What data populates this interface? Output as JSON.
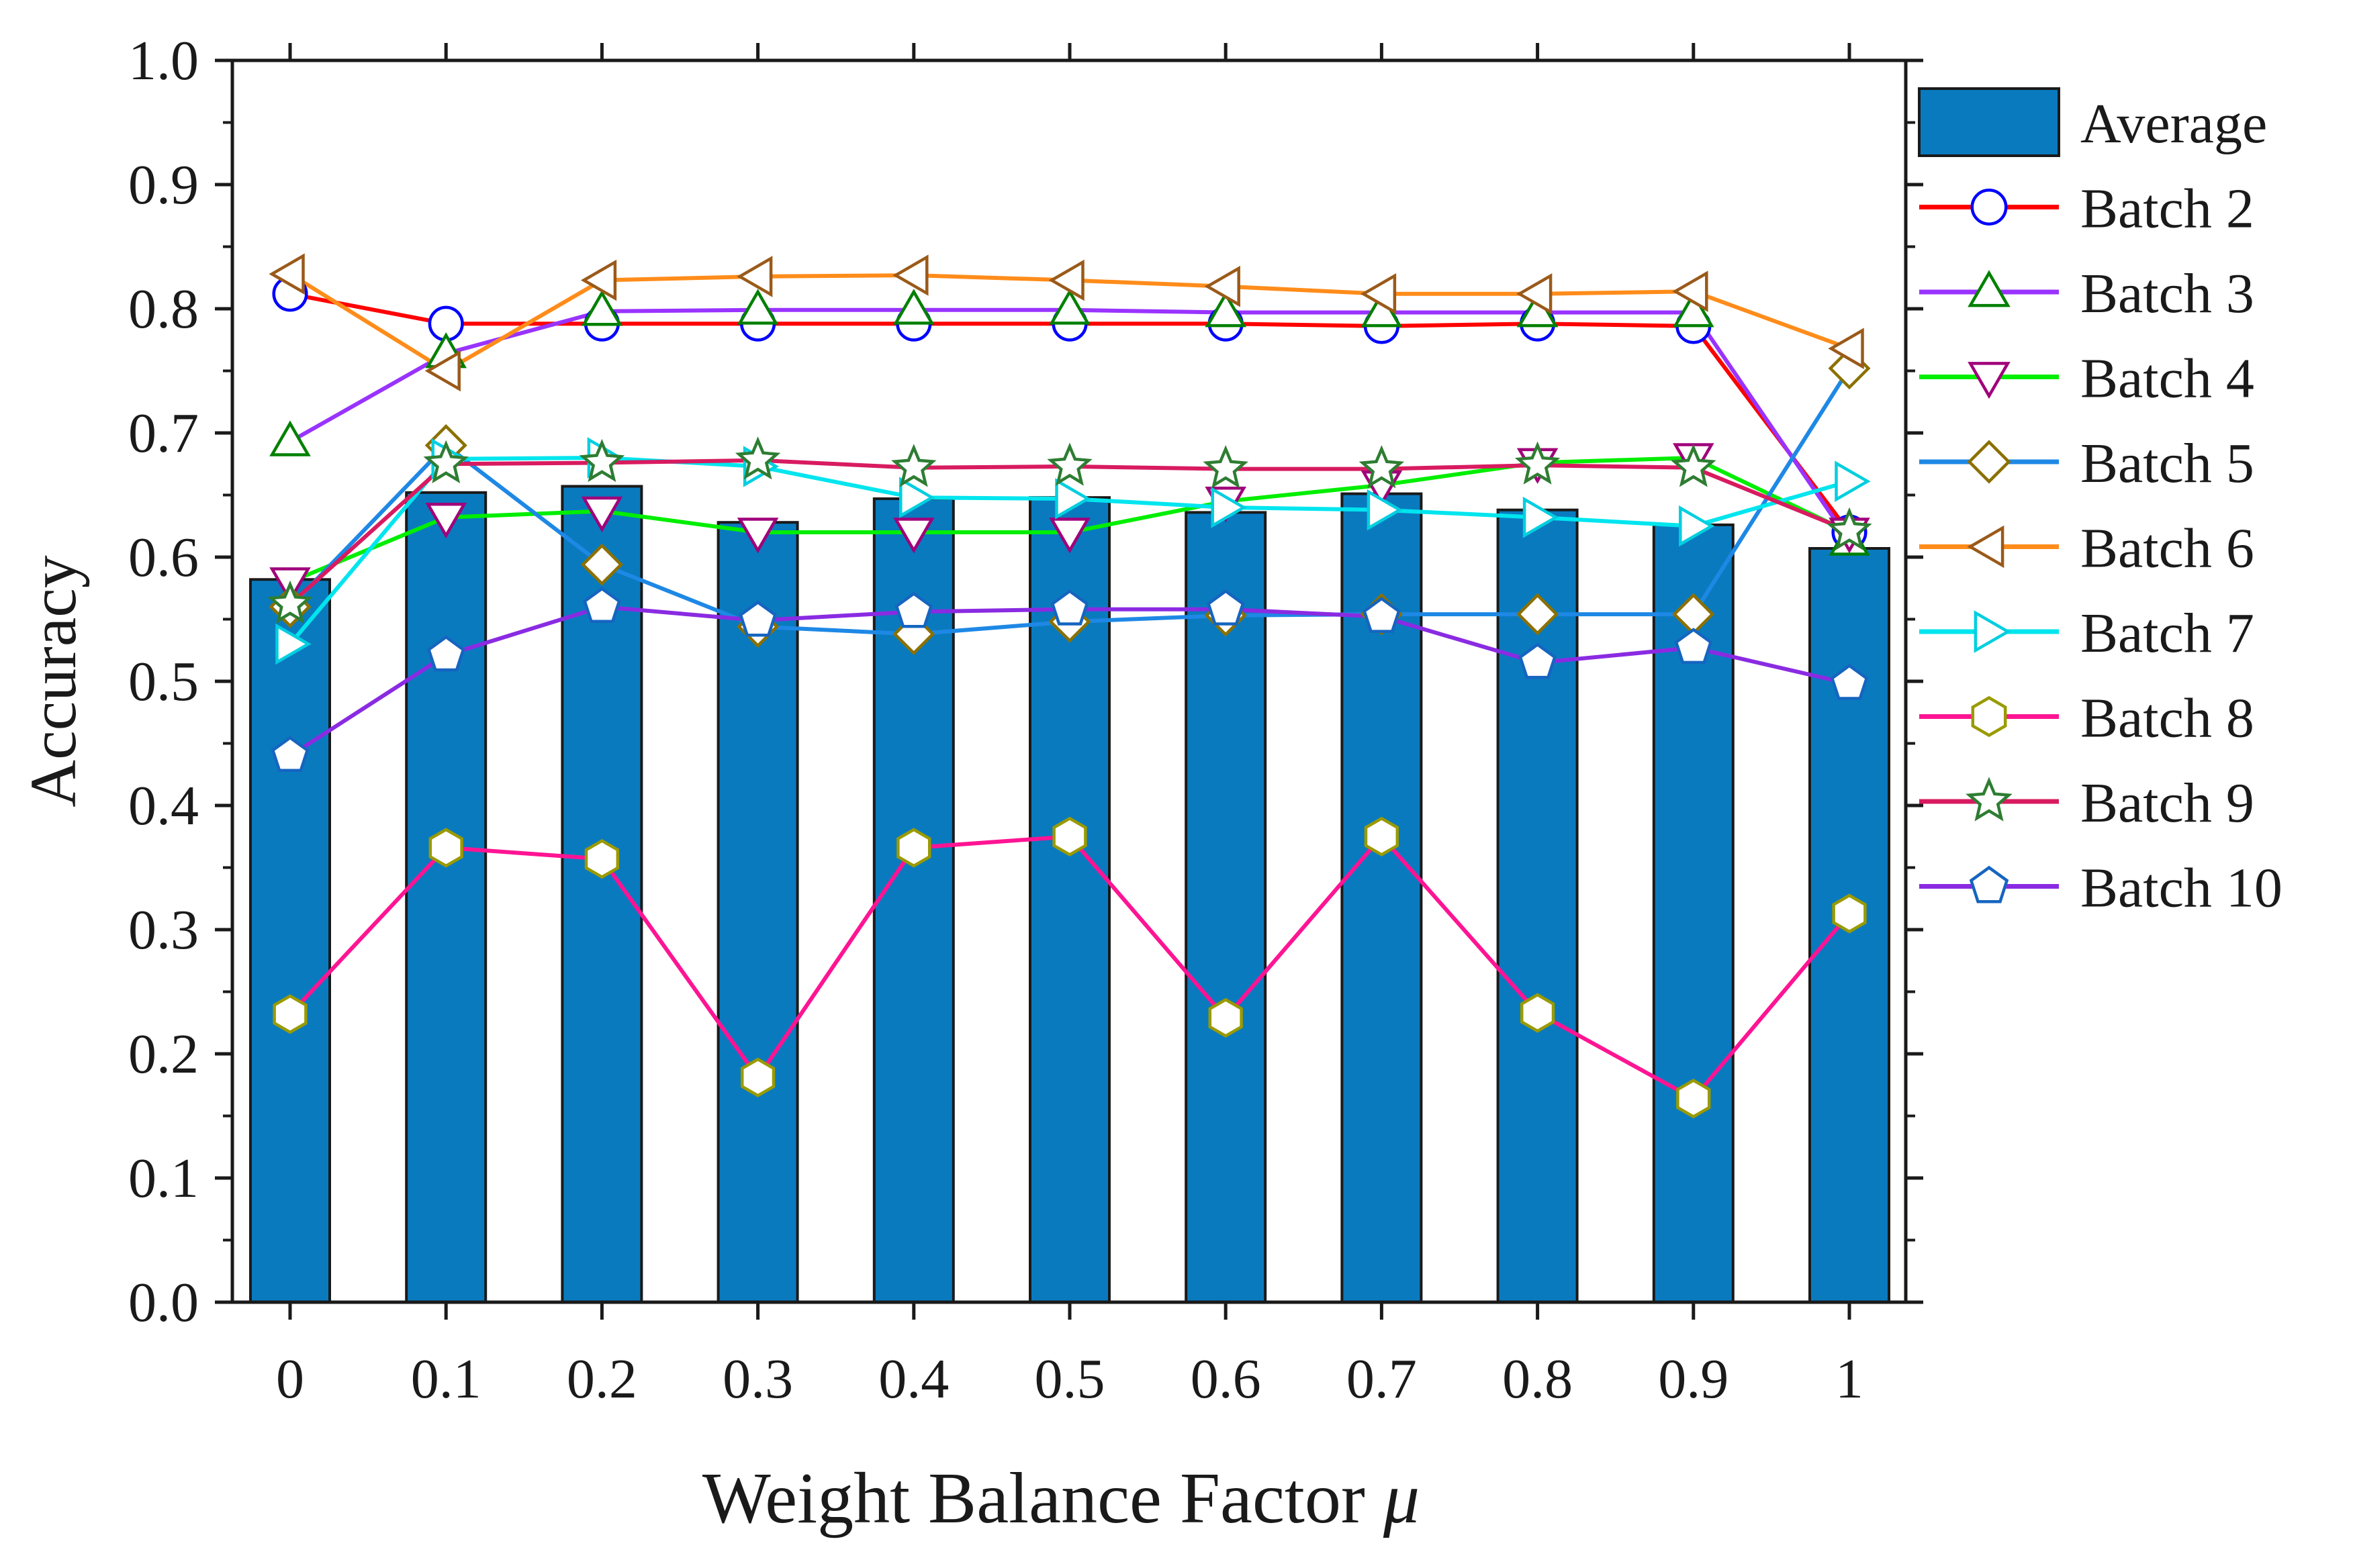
{
  "chart_data": {
    "type": "bar",
    "title": "",
    "xlabel": "Weight Balance Factor",
    "xlabel_symbol": "μ",
    "ylabel": "Accuracy",
    "ylim": [
      0,
      1.0
    ],
    "yticks": [
      "0.0",
      "0.1",
      "0.2",
      "0.3",
      "0.4",
      "0.5",
      "0.6",
      "0.7",
      "0.8",
      "0.9",
      "1.0"
    ],
    "categories": [
      "0",
      "0.1",
      "0.2",
      "0.3",
      "0.4",
      "0.5",
      "0.6",
      "0.7",
      "0.8",
      "0.9",
      "1"
    ],
    "legend_position": "right",
    "bar_series": {
      "name": "Average",
      "color": "#0a7abf",
      "values": [
        0.582,
        0.652,
        0.657,
        0.628,
        0.647,
        0.648,
        0.636,
        0.651,
        0.638,
        0.626,
        0.607
      ]
    },
    "line_series": [
      {
        "name": "Batch 2",
        "line_color": "#ff0000",
        "marker": "circle",
        "marker_color": "#0000ff",
        "values": [
          0.812,
          0.788,
          0.788,
          0.788,
          0.788,
          0.788,
          0.788,
          0.786,
          0.788,
          0.786,
          0.62
        ]
      },
      {
        "name": "Batch 3",
        "line_color": "#9933ff",
        "marker": "triangle-up",
        "marker_color": "#008000",
        "values": [
          0.693,
          0.764,
          0.798,
          0.799,
          0.799,
          0.799,
          0.797,
          0.797,
          0.797,
          0.797,
          0.613
        ]
      },
      {
        "name": "Batch 4",
        "line_color": "#00ee00",
        "marker": "triangle-down",
        "marker_color": "#a0007a",
        "values": [
          0.58,
          0.632,
          0.637,
          0.62,
          0.62,
          0.62,
          0.645,
          0.658,
          0.676,
          0.68,
          0.62
        ]
      },
      {
        "name": "Batch 5",
        "line_color": "#1e88e5",
        "marker": "diamond",
        "marker_color": "#8b7000",
        "values": [
          0.56,
          0.69,
          0.594,
          0.544,
          0.538,
          0.548,
          0.553,
          0.554,
          0.554,
          0.554,
          0.752
        ]
      },
      {
        "name": "Batch 6",
        "line_color": "#ff8c1a",
        "marker": "triangle-left",
        "marker_color": "#9a5a1a",
        "values": [
          0.828,
          0.75,
          0.823,
          0.826,
          0.827,
          0.823,
          0.818,
          0.812,
          0.812,
          0.814,
          0.768
        ]
      },
      {
        "name": "Batch 7",
        "line_color": "#00e5ee",
        "marker": "triangle-right",
        "marker_color": "#00cfe0",
        "values": [
          0.53,
          0.679,
          0.68,
          0.673,
          0.648,
          0.647,
          0.64,
          0.638,
          0.632,
          0.625,
          0.661
        ]
      },
      {
        "name": "Batch 8",
        "line_color": "#ff1493",
        "marker": "hexagon",
        "marker_color": "#9a9a00",
        "values": [
          0.232,
          0.366,
          0.357,
          0.181,
          0.366,
          0.375,
          0.229,
          0.375,
          0.233,
          0.164,
          0.313
        ]
      },
      {
        "name": "Batch 9",
        "line_color": "#d81b60",
        "marker": "star",
        "marker_color": "#2e7d32",
        "values": [
          0.562,
          0.675,
          0.676,
          0.678,
          0.672,
          0.673,
          0.671,
          0.671,
          0.674,
          0.672,
          0.621
        ]
      },
      {
        "name": "Batch 10",
        "line_color": "#8a2be2",
        "marker": "pentagon",
        "marker_color": "#1565c0",
        "values": [
          0.44,
          0.521,
          0.56,
          0.549,
          0.556,
          0.558,
          0.558,
          0.552,
          0.515,
          0.527,
          0.498
        ]
      }
    ]
  }
}
